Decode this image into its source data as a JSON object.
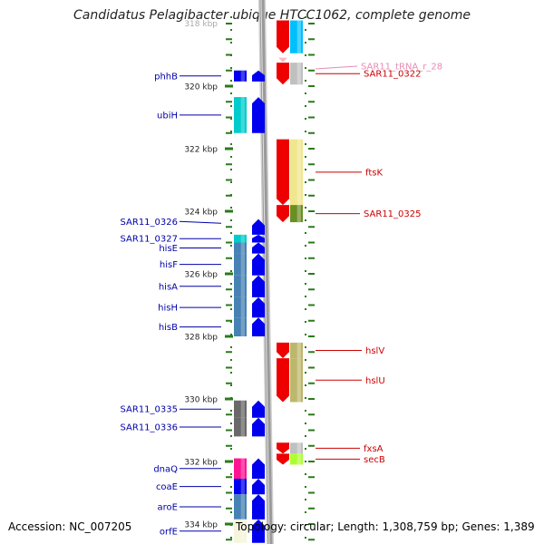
{
  "title": "Candidatus Pelagibacter ubique HTCC1062, complete genome",
  "footer": {
    "accession": "Accession: NC_007205",
    "summary": "Topology: circular; Length: 1,308,759 bp; Genes: 1,389"
  },
  "colors": {
    "forward_label": "#0000aa",
    "reverse_label": "#cc0000",
    "rna_label": "#e68cb4",
    "forward_gene": "#0000ee",
    "reverse_gene": "#ee0000",
    "backbone": "#9a9a9a",
    "tick": "#2a7a1a"
  },
  "scale": {
    "unit": "kbp",
    "top_label": "318 kbp",
    "ticks": [
      {
        "value": 320,
        "label": "320 kbp"
      },
      {
        "value": 322,
        "label": "322 kbp"
      },
      {
        "value": 324,
        "label": "324 kbp"
      },
      {
        "value": 326,
        "label": "326 kbp"
      },
      {
        "value": 328,
        "label": "328 kbp"
      },
      {
        "value": 330,
        "label": "330 kbp"
      },
      {
        "value": 332,
        "label": "332 kbp"
      },
      {
        "value": 334,
        "label": "334 kbp"
      }
    ]
  },
  "genes": {
    "forward": [
      {
        "name": "phhB",
        "start": 319.5,
        "end": 319.85,
        "cog": "#0000ee"
      },
      {
        "name": "ubiH",
        "start": 320.35,
        "end": 321.5,
        "cog": "#00cccc"
      },
      {
        "name": "SAR11_0326",
        "start": 324.25,
        "end": 324.75,
        "cog": "#ffffff"
      },
      {
        "name": "SAR11_0327",
        "start": 324.75,
        "end": 325.0,
        "cog": "#00cccc"
      },
      {
        "name": "hisE",
        "start": 325.0,
        "end": 325.35,
        "cog": "#4682b4"
      },
      {
        "name": "hisF",
        "start": 325.35,
        "end": 326.05,
        "cog": "#4682b4"
      },
      {
        "name": "hisA",
        "start": 326.05,
        "end": 326.75,
        "cog": "#4682b4"
      },
      {
        "name": "hisH",
        "start": 326.75,
        "end": 327.4,
        "cog": "#4682b4"
      },
      {
        "name": "hisB",
        "start": 327.4,
        "end": 328.0,
        "cog": "#4682b4"
      },
      {
        "name": "SAR11_0335",
        "start": 330.05,
        "end": 330.6,
        "cog": "#696969"
      },
      {
        "name": "SAR11_0336",
        "start": 330.6,
        "end": 331.2,
        "cog": "#696969"
      },
      {
        "name": "dnaQ",
        "start": 331.9,
        "end": 332.55,
        "cog": "#ff1493"
      },
      {
        "name": "coaE",
        "start": 332.55,
        "end": 333.05,
        "cog": "#0000ee"
      },
      {
        "name": "aroE",
        "start": 333.05,
        "end": 333.85,
        "cog": "#4682b4"
      },
      {
        "name": "orfE",
        "start": 333.85,
        "end": 334.6,
        "cog": "#f5f5dc"
      }
    ],
    "reverse": [
      {
        "name": "",
        "start": 317.9,
        "end": 318.95,
        "cog": "#00bfff"
      },
      {
        "name": "SAR11_tRNA_r_28",
        "start": 319.1,
        "end": 319.2,
        "cog": "",
        "rna": true
      },
      {
        "name": "SAR11_0322",
        "start": 319.25,
        "end": 319.95,
        "cog": "#c0c0c0"
      },
      {
        "name": "ftsK",
        "start": 321.7,
        "end": 323.8,
        "cog": "#f0e68c"
      },
      {
        "name": "SAR11_0325",
        "start": 323.8,
        "end": 324.35,
        "cog": "#6b8e23"
      },
      {
        "name": "hslV",
        "start": 328.2,
        "end": 328.7,
        "cog": "#bdb76b"
      },
      {
        "name": "hslU",
        "start": 328.7,
        "end": 330.1,
        "cog": "#bdb76b"
      },
      {
        "name": "fxsA",
        "start": 331.4,
        "end": 331.75,
        "cog": "#c0c0c0"
      },
      {
        "name": "secB",
        "start": 331.75,
        "end": 332.1,
        "cog": "#adff2f"
      }
    ]
  }
}
